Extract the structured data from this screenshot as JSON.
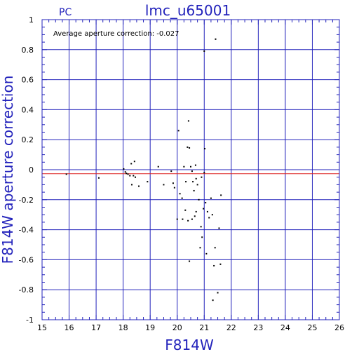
{
  "chart_data": {
    "type": "scatter",
    "title": "lmc_u65001",
    "panel_label": "PC",
    "xlabel": "F814W",
    "ylabel": "F814W aperture correction",
    "annotation": "Average aperture correction: -0.027",
    "xlim": [
      15,
      26
    ],
    "ylim": [
      -1,
      1
    ],
    "xticks": [
      15,
      16,
      17,
      18,
      19,
      20,
      21,
      22,
      23,
      24,
      25,
      26
    ],
    "yticks": [
      -1,
      -0.8,
      -0.6,
      -0.4,
      -0.2,
      0,
      0.2,
      0.4,
      0.6,
      0.8,
      1
    ],
    "xtick_labels": [
      "15",
      "16",
      "17",
      "18",
      "19",
      "20",
      "21",
      "22",
      "23",
      "24",
      "25",
      "26"
    ],
    "ytick_labels": [
      "-1",
      "-0.8",
      "-0.6",
      "-0.4",
      "-0.2",
      "0",
      "0.2",
      "0.4",
      "0.6",
      "0.8",
      "1"
    ],
    "grid": true,
    "reference_lines": [
      {
        "y": 0.0,
        "color": "#2222bb"
      },
      {
        "y": -0.027,
        "color": "#dd2222"
      }
    ],
    "point_color": "#000000",
    "points": [
      [
        15.9,
        -0.03
      ],
      [
        17.1,
        -0.055
      ],
      [
        18.02,
        0.005
      ],
      [
        18.08,
        -0.015
      ],
      [
        18.12,
        -0.025
      ],
      [
        18.18,
        -0.03
      ],
      [
        18.25,
        -0.04
      ],
      [
        18.3,
        0.04
      ],
      [
        18.38,
        -0.04
      ],
      [
        18.42,
        0.055
      ],
      [
        18.45,
        -0.05
      ],
      [
        18.32,
        -0.1
      ],
      [
        18.58,
        -0.11
      ],
      [
        18.9,
        -0.08
      ],
      [
        19.3,
        0.02
      ],
      [
        19.5,
        -0.1
      ],
      [
        19.78,
        -0.01
      ],
      [
        19.85,
        -0.09
      ],
      [
        19.9,
        -0.12
      ],
      [
        20.05,
        0.26
      ],
      [
        20.1,
        -0.16
      ],
      [
        20.18,
        -0.19
      ],
      [
        20.25,
        0.02
      ],
      [
        20.32,
        -0.08
      ],
      [
        20.38,
        0.15
      ],
      [
        20.42,
        0.325
      ],
      [
        20.45,
        0.145
      ],
      [
        20.5,
        0.02
      ],
      [
        20.55,
        -0.01
      ],
      [
        20.58,
        -0.08
      ],
      [
        20.62,
        -0.14
      ],
      [
        20.68,
        0.03
      ],
      [
        20.7,
        -0.06
      ],
      [
        20.75,
        -0.1
      ],
      [
        20.8,
        -0.2
      ],
      [
        20.88,
        -0.38
      ],
      [
        20.92,
        -0.45
      ],
      [
        20.97,
        -0.26
      ],
      [
        21.0,
        0.79
      ],
      [
        21.02,
        0.14
      ],
      [
        21.05,
        -0.22
      ],
      [
        21.08,
        -0.56
      ],
      [
        21.12,
        -0.28
      ],
      [
        21.18,
        -0.32
      ],
      [
        21.25,
        -0.19
      ],
      [
        21.3,
        -0.3
      ],
      [
        21.32,
        -0.87
      ],
      [
        21.36,
        -0.64
      ],
      [
        21.4,
        -0.52
      ],
      [
        21.42,
        0.87
      ],
      [
        21.5,
        -0.82
      ],
      [
        21.55,
        -0.39
      ],
      [
        21.6,
        -0.63
      ],
      [
        21.62,
        -0.17
      ],
      [
        20.0,
        -0.33
      ],
      [
        20.2,
        -0.33
      ],
      [
        20.4,
        -0.34
      ],
      [
        20.55,
        -0.33
      ],
      [
        20.65,
        -0.31
      ],
      [
        20.45,
        -0.61
      ],
      [
        20.85,
        -0.52
      ],
      [
        20.7,
        -0.28
      ],
      [
        20.3,
        -0.27
      ],
      [
        21.0,
        -0.02
      ],
      [
        20.9,
        -0.05
      ]
    ]
  }
}
